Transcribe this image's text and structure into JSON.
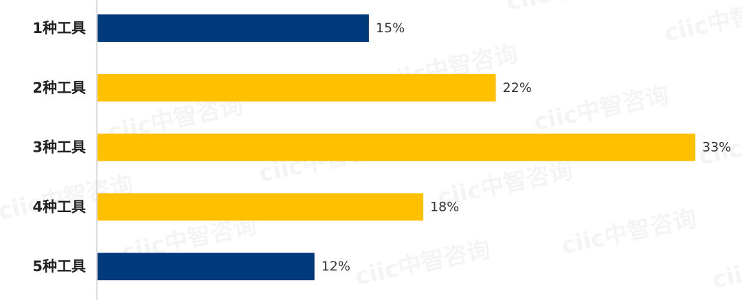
{
  "chart_data": {
    "type": "bar",
    "orientation": "horizontal",
    "title": "",
    "xlabel": "",
    "ylabel": "",
    "categories": [
      "1种工具",
      "2种工具",
      "3种工具",
      "4种工具",
      "5种工具"
    ],
    "values": [
      15,
      22,
      33,
      18,
      12
    ],
    "value_labels": [
      "15%",
      "22%",
      "33%",
      "18%",
      "12%"
    ],
    "bar_colors": [
      "#003a7d",
      "#ffc000",
      "#ffc000",
      "#ffc000",
      "#003a7d"
    ],
    "xlim": [
      0,
      33
    ],
    "grid": false,
    "legend": "none"
  },
  "watermark": {
    "text": "ciic中智咨询"
  },
  "colors": {
    "axis": "#d0d0d0",
    "category_text": "#222222",
    "value_text": "#333333"
  }
}
